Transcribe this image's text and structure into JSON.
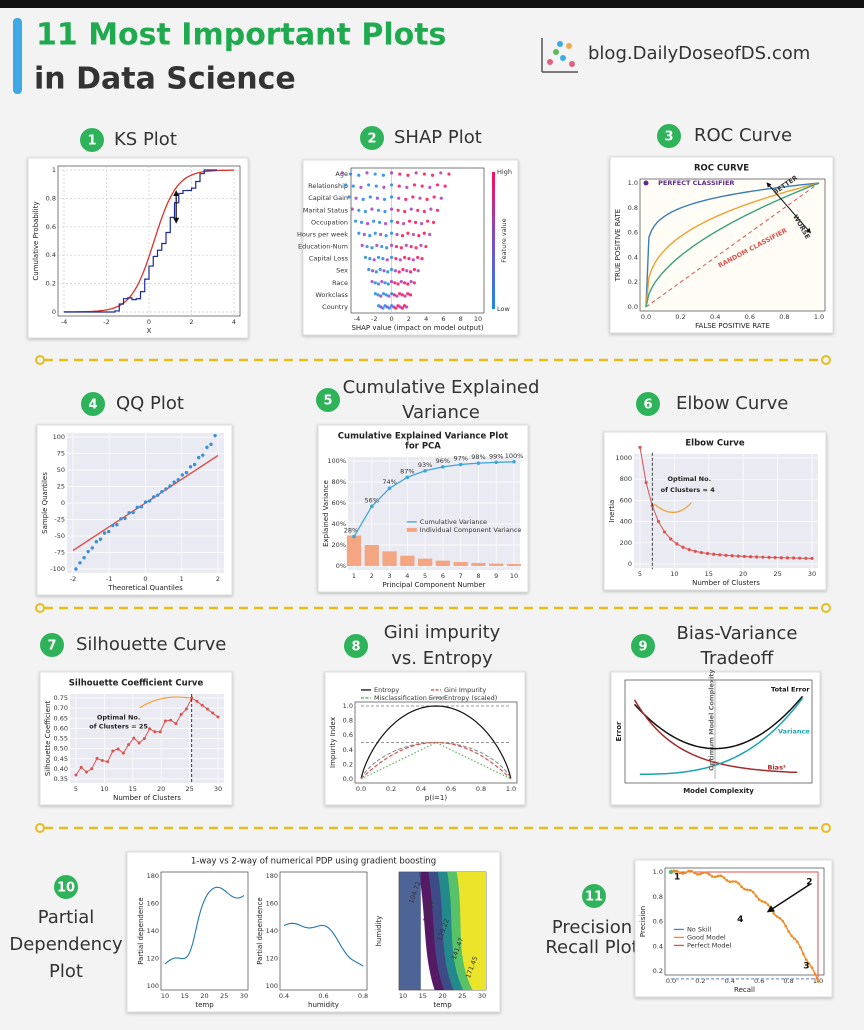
{
  "header": {
    "title_line1": "11 Most Important Plots",
    "title_line2": "in Data Science",
    "site": "blog.DailyDoseofDS.com"
  },
  "panels": [
    {
      "number": "1",
      "name": [
        "KS Plot"
      ],
      "chart": {
        "ylabel": "Cumulative Probability",
        "xlabel": "X",
        "xticks": [
          -4,
          -2,
          0,
          2,
          4
        ],
        "yticks": [
          0,
          0.2,
          0.4,
          0.6,
          0.8,
          1
        ],
        "grid": true
      }
    },
    {
      "number": "2",
      "name": [
        "SHAP Plot"
      ],
      "chart": {
        "categories": [
          "Age",
          "Relationship",
          "Capital Gain",
          "Marital Status",
          "Occupation",
          "Hours per week",
          "Education-Num",
          "Capital Loss",
          "Sex",
          "Race",
          "Workclass",
          "Country"
        ],
        "xlabel": "SHAP value (impact on model output)",
        "xticks": [
          -4,
          -2,
          0,
          2,
          4,
          6,
          8,
          10
        ],
        "colorbar": {
          "high": "High",
          "low": "Low",
          "label": "Feature value"
        }
      }
    },
    {
      "number": "3",
      "name": [
        "ROC Curve"
      ],
      "chart": {
        "title": "ROC CURVE",
        "xlabel": "FALSE POSITIVE RATE",
        "ylabel": "TRUE POSITIVE RATE",
        "xticks": [
          "0.0",
          "0.2",
          "0.4",
          "0.6",
          "0.8",
          "1.0"
        ],
        "yticks": [
          "0.0",
          "0.2",
          "0.4",
          "0.6",
          "0.8",
          "1.0"
        ],
        "annotations": [
          {
            "text": "PERFECT CLASSIFIER",
            "color": "#5b2d8e"
          },
          {
            "text": "BETTER",
            "color": "#333333"
          },
          {
            "text": "WORSE",
            "color": "#333333"
          },
          {
            "text": "RANDOM CLASSIFIER",
            "color": "#d9534f"
          }
        ]
      }
    },
    {
      "number": "4",
      "name": [
        "QQ Plot"
      ],
      "chart": {
        "xlabel": "Theoretical Quantiles",
        "ylabel": "Sample Quantiles",
        "xticks": [
          -2,
          -1,
          0,
          1,
          2
        ],
        "yticks": [
          -100,
          -75,
          -50,
          -25,
          0,
          25,
          50,
          75,
          100
        ],
        "grid": true
      }
    },
    {
      "number": "5",
      "name": [
        "Cumulative Explained",
        "Variance"
      ],
      "chart": {
        "title": [
          "Cumulative Explained Variance Plot",
          "for PCA"
        ],
        "ylabel": "Explained Variance",
        "xlabel": "Principal Component Number",
        "xticks": [
          1,
          2,
          3,
          4,
          5,
          6,
          7,
          8,
          9,
          10
        ],
        "yticks": [
          "0%",
          "20%",
          "40%",
          "60%",
          "80%",
          "100%"
        ],
        "point_labels": [
          "28%",
          "56%",
          "74%",
          "87%",
          "93%",
          "96%",
          "97%",
          "98%",
          "99%",
          "100%"
        ],
        "legend": [
          {
            "name": "Cumulative Variance",
            "color": "#3ea6d8"
          },
          {
            "name": "Individual Component Variance",
            "color": "#f4a582"
          }
        ],
        "grid": true
      }
    },
    {
      "number": "6",
      "name": [
        "Elbow Curve"
      ],
      "chart": {
        "title": "Elbow Curve",
        "ylabel": "Inertia",
        "xlabel": "Number of Clusters",
        "xticks": [
          5,
          10,
          15,
          20,
          25,
          30
        ],
        "yticks": [
          0,
          200,
          400,
          600,
          800,
          1000
        ],
        "annotations": [
          {
            "text": "Optimal No.",
            "color": "#222222"
          },
          {
            "text": "of Clusters = 4",
            "color": "#222222"
          }
        ],
        "grid": true
      }
    },
    {
      "number": "7",
      "name": [
        "Silhouette Curve"
      ],
      "chart": {
        "title": "Silhouette Coefficient Curve",
        "ylabel": "Silhouette Coefficient",
        "xlabel": "Number of Clusters",
        "xticks": [
          5,
          10,
          15,
          20,
          25,
          30
        ],
        "yticks": [
          "0.35",
          "0.40",
          "0.45",
          "0.50",
          "0.55",
          "0.60",
          "0.65",
          "0.70",
          "0.75"
        ],
        "annotations": [
          {
            "text": "Optimal No.",
            "color": "#222222"
          },
          {
            "text": "of Clusters = 25",
            "color": "#222222"
          }
        ],
        "grid": true
      }
    },
    {
      "number": "8",
      "name": [
        "Gini impurity",
        "vs. Entropy"
      ],
      "chart": {
        "ylabel": "Impurity Index",
        "xlabel": "p(i=1)",
        "xticks": [
          "0.0",
          "0.2",
          "0.4",
          "0.6",
          "0.8",
          "1.0"
        ],
        "yticks": [
          "0.0",
          "0.2",
          "0.4",
          "0.6",
          "0.8",
          "1.0"
        ],
        "legend": [
          {
            "name": "Entropy",
            "color": "#111111"
          },
          {
            "name": "Gini Impurity",
            "color": "#d9534f"
          },
          {
            "name": "Misclassification Error",
            "color": "#5cb85c"
          },
          {
            "name": "Entropy (scaled)",
            "color": "#888888"
          }
        ]
      }
    },
    {
      "number": "9",
      "name": [
        "Bias-Variance",
        "Tradeoff"
      ],
      "chart": {
        "ylabel": "Error",
        "xlabel": "Model Complexity",
        "annotations": [
          {
            "text": "Total Error",
            "color": "#111111"
          },
          {
            "text": "Variance",
            "color": "#1aa3b5"
          },
          {
            "text": "Bias²",
            "color": "#b22222"
          },
          {
            "text": "Optimum Model Complexity",
            "color": "#666666"
          }
        ]
      }
    },
    {
      "number": "10",
      "name": [
        "Partial",
        "Dependency",
        "Plot"
      ],
      "chart": {
        "title": "1-way vs 2-way of numerical PDP using gradient boosting",
        "subplots": [
          {
            "ylabel": "Partial dependence",
            "xlabel": "temp",
            "xticks": [
              10,
              15,
              20,
              25,
              30
            ],
            "yticks": [
              100,
              120,
              140,
              160,
              180
            ]
          },
          {
            "ylabel": "Partial dependence",
            "xlabel": "humidity",
            "xticks": [
              "0.4",
              "0.6",
              "0.8"
            ],
            "yticks": [
              100,
              120,
              140,
              160,
              180
            ]
          },
          {
            "ylabel": "humidity",
            "xlabel": "temp",
            "xticks": [
              10,
              15,
              20,
              25,
              30
            ],
            "contour_labels": [
              "104.72",
              "116.97",
              "129.22",
              "141.47",
              "171.45"
            ]
          }
        ]
      }
    },
    {
      "number": "11",
      "name": [
        "Precision",
        "Recall Plot"
      ],
      "chart": {
        "ylabel": "Precision",
        "xlabel": "Recall",
        "xticks": [
          "0.0",
          "0.2",
          "0.4",
          "0.6",
          "0.8",
          "1.0"
        ],
        "yticks": [
          "0.2",
          "0.4",
          "0.6",
          "0.8",
          "1.0"
        ],
        "legend": [
          {
            "name": "No Skill",
            "color": "#5b7fc4"
          },
          {
            "name": "Good Model",
            "color": "#f08a24"
          },
          {
            "name": "Perfect Model",
            "color": "#d9534f"
          }
        ],
        "annotations": [
          {
            "text": "1",
            "color": "#111111"
          },
          {
            "text": "2",
            "color": "#111111"
          },
          {
            "text": "3",
            "color": "#111111"
          },
          {
            "text": "4",
            "color": "#111111"
          }
        ]
      }
    }
  ]
}
